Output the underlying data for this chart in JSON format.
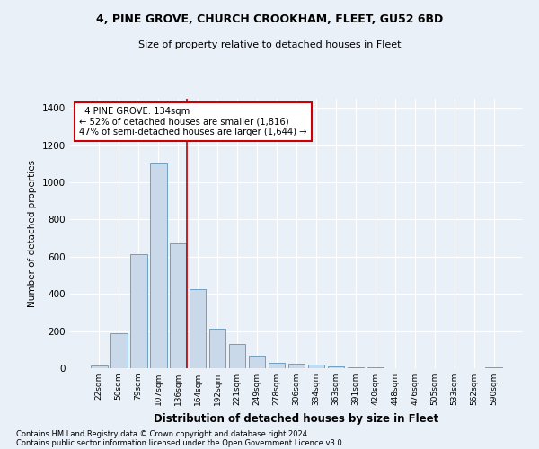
{
  "title1": "4, PINE GROVE, CHURCH CROOKHAM, FLEET, GU52 6BD",
  "title2": "Size of property relative to detached houses in Fleet",
  "xlabel": "Distribution of detached houses by size in Fleet",
  "ylabel": "Number of detached properties",
  "categories": [
    "22sqm",
    "50sqm",
    "79sqm",
    "107sqm",
    "136sqm",
    "164sqm",
    "192sqm",
    "221sqm",
    "249sqm",
    "278sqm",
    "306sqm",
    "334sqm",
    "363sqm",
    "391sqm",
    "420sqm",
    "448sqm",
    "476sqm",
    "505sqm",
    "533sqm",
    "562sqm",
    "590sqm"
  ],
  "values": [
    15,
    190,
    615,
    1100,
    670,
    425,
    215,
    130,
    70,
    28,
    25,
    20,
    12,
    7,
    3,
    2,
    1,
    1,
    1,
    1,
    5
  ],
  "bar_color": "#c9d9ea",
  "bar_edge_color": "#6fa0c0",
  "red_line_x": 4.43,
  "annotation_text": "  4 PINE GROVE: 134sqm\n← 52% of detached houses are smaller (1,816)\n47% of semi-detached houses are larger (1,644) →",
  "annotation_box_color": "#ffffff",
  "annotation_box_edge": "#cc0000",
  "ylim": [
    0,
    1450
  ],
  "yticks": [
    0,
    200,
    400,
    600,
    800,
    1000,
    1200,
    1400
  ],
  "footer1": "Contains HM Land Registry data © Crown copyright and database right 2024.",
  "footer2": "Contains public sector information licensed under the Open Government Licence v3.0.",
  "bg_color": "#eaf0f8",
  "plot_bg_color": "#eaf0f8"
}
